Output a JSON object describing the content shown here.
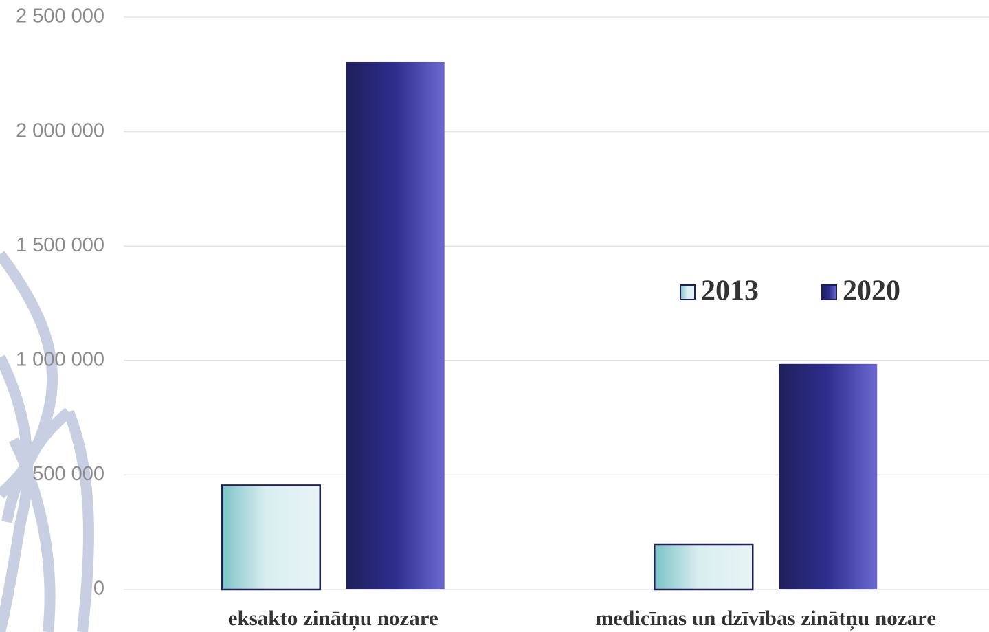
{
  "chart_data": {
    "type": "bar",
    "categories": [
      "eksakto zinātņu nozare",
      "medicīnas un dzīvības zinātņu nozare"
    ],
    "series": [
      {
        "name": "2013",
        "color": "#7cc3c7",
        "values": [
          455000,
          195000
        ]
      },
      {
        "name": "2020",
        "color": "#1f1f5c",
        "values": [
          2305000,
          985000
        ]
      }
    ],
    "ylim": [
      0,
      2500000
    ],
    "yticks": [
      0,
      {
        "value": 500000,
        "label": "500 000"
      },
      {
        "value": 1000000,
        "label": "1 000 000"
      },
      {
        "value": 1500000,
        "label": "1 500 000"
      },
      {
        "value": 2000000,
        "label": "2 000 000"
      },
      {
        "value": 2500000,
        "label": "2 500 000"
      }
    ],
    "grid": true,
    "legend": "right"
  }
}
